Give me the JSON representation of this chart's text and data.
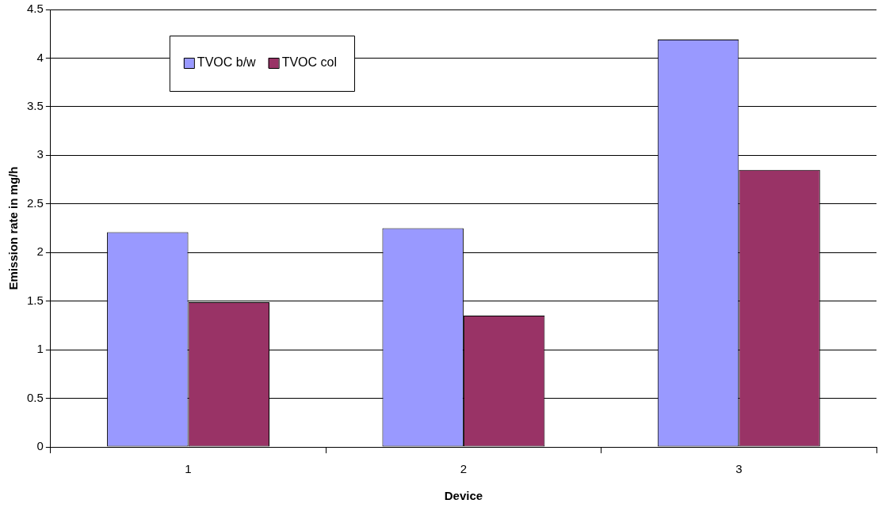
{
  "chart_data": {
    "type": "bar",
    "xlabel": "Device",
    "ylabel": "Emission rate in mg/h",
    "categories": [
      "1",
      "2",
      "3"
    ],
    "series": [
      {
        "name": "TVOC b/w",
        "color": "#9999ff",
        "values": [
          2.21,
          2.25,
          4.19
        ]
      },
      {
        "name": "TVOC col",
        "color": "#993366",
        "values": [
          1.49,
          1.35,
          2.85
        ]
      }
    ],
    "ylim": [
      0,
      4.5
    ],
    "yticks": [
      0,
      0.5,
      1,
      1.5,
      2,
      2.5,
      3,
      3.5,
      4,
      4.5
    ],
    "grid": "y",
    "legend": "top left"
  }
}
